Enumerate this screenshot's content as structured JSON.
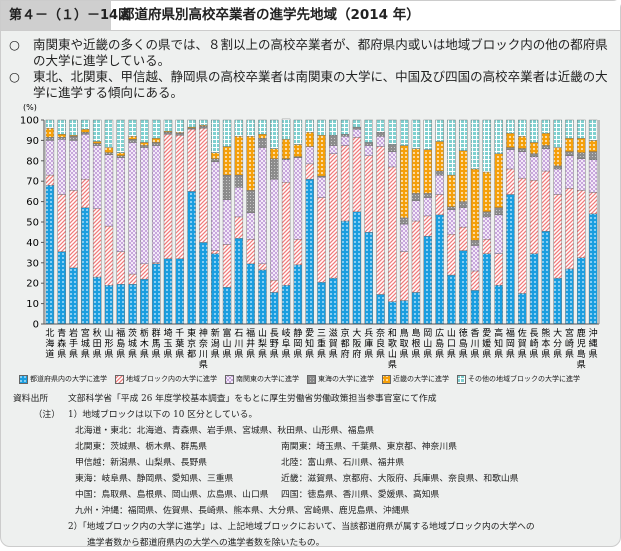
{
  "header": {
    "figure_number": "第４－（１）－14図",
    "title": "都道府県別高校卒業者の進学先地域（2014 年）"
  },
  "bullets": [
    {
      "mark": "○",
      "text": "南関東や近畿の多くの県では、８割以上の高校卒業者が、都府県内或いは地域ブロック内の他の都府県の大学に進学している。"
    },
    {
      "mark": "○",
      "text": "東北、北関東、甲信越、静岡県の高校卒業者は南関東の大学に、中国及び四国の高校卒業者は近畿の大学に進学する傾向にある。"
    }
  ],
  "chart_data": {
    "type": "bar",
    "stacked": true,
    "ylabel": "(%)",
    "ylim": [
      0,
      100
    ],
    "yticks": [
      "0",
      "10",
      "20",
      "30",
      "40",
      "50",
      "60",
      "70",
      "80",
      "90",
      "100"
    ],
    "categories": [
      "北海道",
      "青森県",
      "岩手県",
      "宮城県",
      "秋田県",
      "山形県",
      "福島県",
      "茨城県",
      "栃木県",
      "群馬県",
      "埼玉県",
      "千葉県",
      "東京都",
      "神奈川県",
      "新潟県",
      "富山県",
      "石川県",
      "福井県",
      "山梨県",
      "長野県",
      "岐阜県",
      "静岡県",
      "愛知県",
      "三重県",
      "滋賀県",
      "京都府",
      "大阪府",
      "兵庫県",
      "奈良県",
      "和歌山県",
      "鳥取県",
      "島根県",
      "岡山県",
      "広島県",
      "山口県",
      "徳島県",
      "香川県",
      "愛媛県",
      "高知県",
      "福岡県",
      "佐賀県",
      "長崎県",
      "熊本県",
      "大分県",
      "宮崎県",
      "鹿児島県",
      "沖縄県"
    ],
    "series": [
      {
        "name": "都道府県内の大学に進学",
        "color": "#1a9ee0",
        "pattern": "dots",
        "values": [
          68,
          35.5,
          27.5,
          57,
          23,
          19,
          19.5,
          19.5,
          22,
          29.5,
          32,
          32,
          65,
          40,
          34.5,
          18,
          42,
          29.5,
          26.5,
          15.5,
          19,
          29,
          71,
          20.5,
          22.5,
          50.5,
          55,
          45,
          14.5,
          11,
          11.5,
          15.5,
          43,
          53.5,
          24,
          36,
          16.5,
          34.5,
          19,
          63.5,
          15,
          34.5,
          45.5,
          22.5,
          27,
          32.5,
          54
        ]
      },
      {
        "name": "地域ブロック内の大学に進学",
        "color": "#f28c8c",
        "pattern": "hatch",
        "values": [
          5,
          28,
          38,
          14,
          33.5,
          29,
          16,
          5,
          7.5,
          0.5,
          61,
          60.5,
          30.5,
          56,
          1.5,
          21,
          10.5,
          12,
          3,
          6,
          50.5,
          12.5,
          7.5,
          41.5,
          61,
          37,
          36.5,
          37.5,
          72.5,
          66,
          24,
          35,
          10,
          10,
          20,
          11.5,
          9.5,
          7,
          15.5,
          12.5,
          56.5,
          36,
          29.5,
          41,
          39.5,
          33,
          10.5
        ]
      },
      {
        "name": "南関東の大学に進学",
        "color": "#c7a6dc",
        "pattern": "check",
        "values": [
          17,
          27,
          24.5,
          22,
          31,
          35,
          46,
          64.5,
          57,
          57.5,
          0,
          0,
          0,
          0,
          43.5,
          22,
          14.5,
          13,
          57,
          49.5,
          11,
          40,
          8.5,
          10,
          4,
          4.5,
          4,
          5,
          5,
          7.5,
          13.5,
          10,
          9,
          9.5,
          12,
          9.5,
          12.5,
          11,
          19,
          9.5,
          13,
          11.5,
          11,
          12.5,
          16,
          15.5,
          16
        ]
      },
      {
        "name": "東海の大学に進学",
        "color": "#9a9a9a",
        "pattern": "grid",
        "values": [
          1.5,
          1,
          2,
          1,
          1,
          1,
          1,
          1.5,
          1,
          1.5,
          1,
          1,
          0.5,
          1,
          1.5,
          12,
          6,
          11,
          4.5,
          10,
          0.5,
          0.5,
          0,
          0.5,
          5,
          1,
          1,
          1.5,
          2,
          3.5,
          3,
          3.5,
          2,
          2,
          1.5,
          3,
          2.5,
          2.5,
          3.5,
          1,
          1.5,
          1.5,
          1.5,
          1.5,
          2,
          3,
          4
        ]
      },
      {
        "name": "近畿の大学に進学",
        "color": "#f5a00a",
        "pattern": "plus",
        "values": [
          4.5,
          1.5,
          0.5,
          1.5,
          1,
          2.5,
          1.5,
          1.5,
          1.5,
          2,
          0.5,
          0.5,
          0.5,
          0.5,
          3,
          14,
          19,
          26.5,
          2,
          5,
          9.5,
          6,
          7,
          20,
          0,
          0,
          0,
          0,
          0,
          0,
          35.5,
          22,
          21.5,
          14.5,
          15.5,
          25,
          35,
          19.5,
          26.5,
          7,
          6,
          5.5,
          6,
          9,
          6.5,
          7,
          5.5
        ]
      },
      {
        "name": "その他の地域ブロックの大学に進学",
        "color": "#9fdada",
        "pattern": "tiles",
        "values": [
          4,
          7,
          7.5,
          4.5,
          10.5,
          13.5,
          16,
          8,
          11,
          9,
          5.5,
          6,
          3.5,
          2.5,
          16,
          13,
          8,
          8,
          7,
          14,
          10,
          12,
          6,
          7.5,
          7.5,
          7,
          3.5,
          11,
          6,
          12,
          12.5,
          14,
          14.5,
          10.5,
          27,
          15,
          24,
          25.5,
          16.5,
          6.5,
          8,
          11,
          6.5,
          13.5,
          9,
          9,
          10
        ]
      }
    ]
  },
  "notes": {
    "source_label": "資料出所",
    "source_text": "文部科学省「平成 26 年度学校基本調査」をもとに厚生労働省労働政策担当参事官室にて作成",
    "note_label": "（注）",
    "note1": "1）地域ブロックは以下の 10 区分としている。",
    "blocks": [
      "北海道・東北：北海道、青森県、岩手県、宮城県、秋田県、山形県、福島県",
      "北関東：茨城県、栃木県、群馬県",
      "南関東：埼玉県、千葉県、東京都、神奈川県",
      "甲信越：新潟県、山梨県、長野県",
      "北陸：富山県、石川県、福井県",
      "東海：岐阜県、静岡県、愛知県、三重県",
      "近畿：滋賀県、京都府、大阪府、兵庫県、奈良県、和歌山県",
      "中国：鳥取県、島根県、岡山県、広島県、山口県",
      "四国：徳島県、香川県、愛媛県、高知県",
      "九州・沖縄：福岡県、佐賀県、長崎県、熊本県、大分県、宮崎県、鹿児島県、沖縄県"
    ],
    "note2_line1": "2）「地域ブロック内の大学に進学」は、上記地域ブロックにおいて、当該都道府県が属する地域ブロック内の大学への",
    "note2_line2": "進学者数から都道府県内の大学への進学者数を除いたもの。"
  }
}
